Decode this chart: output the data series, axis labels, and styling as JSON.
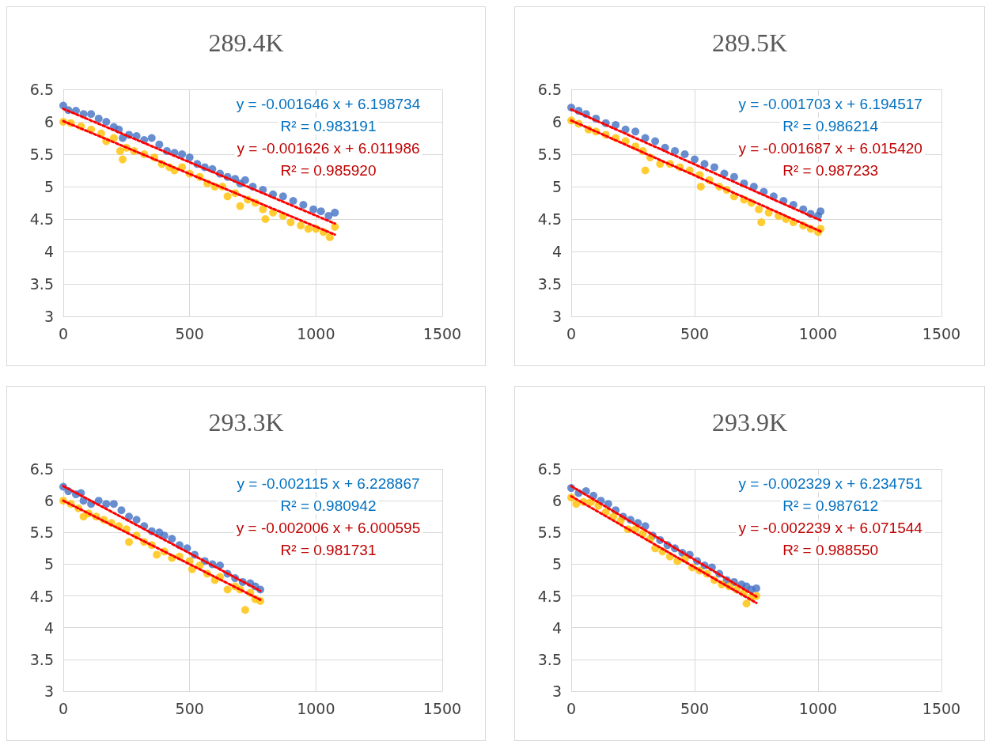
{
  "chart_data": [
    {
      "type": "scatter",
      "title": "289.4K",
      "xlim": [
        0,
        1500
      ],
      "xticks": [
        0,
        500,
        1000,
        1500
      ],
      "ylim": [
        3,
        6.5
      ],
      "yticks": [
        3,
        3.5,
        4,
        4.5,
        5,
        5.5,
        6,
        6.5
      ],
      "grid": true,
      "annotations": [
        "y = -0.001646 x + 6.198734",
        "R² = 0.983191",
        "y = -0.001626 x + 6.011986",
        "R² = 0.985920"
      ],
      "series": [
        {
          "color": "#4472c4",
          "marker": "circle",
          "x": [
            0,
            20,
            50,
            80,
            110,
            140,
            170,
            200,
            220,
            235,
            260,
            290,
            320,
            350,
            380,
            410,
            440,
            470,
            500,
            530,
            560,
            590,
            620,
            650,
            680,
            700,
            720,
            750,
            790,
            830,
            870,
            910,
            950,
            990,
            1020,
            1050,
            1075
          ],
          "values": [
            6.25,
            6.18,
            6.17,
            6.12,
            6.12,
            6.05,
            6.0,
            5.92,
            5.88,
            5.75,
            5.8,
            5.78,
            5.72,
            5.75,
            5.65,
            5.55,
            5.52,
            5.5,
            5.45,
            5.35,
            5.3,
            5.27,
            5.2,
            5.15,
            5.12,
            5.05,
            5.1,
            5.0,
            4.95,
            4.88,
            4.85,
            4.78,
            4.72,
            4.65,
            4.62,
            4.55,
            4.6
          ]
        },
        {
          "color": "#ffc000",
          "marker": "circle",
          "x": [
            0,
            30,
            70,
            110,
            150,
            170,
            200,
            225,
            235,
            250,
            280,
            320,
            360,
            390,
            420,
            440,
            470,
            500,
            540,
            570,
            600,
            630,
            650,
            680,
            700,
            730,
            760,
            790,
            800,
            830,
            870,
            900,
            940,
            970,
            1000,
            1030,
            1055,
            1075
          ],
          "values": [
            6.0,
            5.98,
            5.93,
            5.88,
            5.82,
            5.7,
            5.75,
            5.55,
            5.42,
            5.6,
            5.55,
            5.5,
            5.45,
            5.35,
            5.3,
            5.25,
            5.3,
            5.2,
            5.15,
            5.05,
            5.0,
            5.0,
            4.85,
            4.9,
            4.7,
            4.8,
            4.75,
            4.65,
            4.5,
            4.6,
            4.55,
            4.45,
            4.4,
            4.35,
            4.35,
            4.3,
            4.22,
            4.38
          ]
        },
        {
          "type": "line",
          "marker": "none",
          "line_style": "dotted",
          "color": "#ff0000",
          "x": [
            0,
            1075
          ],
          "values": [
            6.2,
            4.43
          ]
        },
        {
          "type": "line",
          "marker": "none",
          "line_style": "dotted",
          "color": "#ff0000",
          "x": [
            0,
            1075
          ],
          "values": [
            6.01,
            4.26
          ]
        }
      ]
    },
    {
      "type": "scatter",
      "title": "289.5K",
      "xlim": [
        0,
        1500
      ],
      "xticks": [
        0,
        500,
        1000,
        1500
      ],
      "ylim": [
        3,
        6.5
      ],
      "yticks": [
        3,
        3.5,
        4,
        4.5,
        5,
        5.5,
        6,
        6.5
      ],
      "grid": true,
      "annotations": [
        "y = -0.001703 x + 6.194517",
        "R² = 0.986214",
        "y = -0.001687 x + 6.015420",
        "R² = 0.987233"
      ],
      "series": [
        {
          "color": "#4472c4",
          "marker": "circle",
          "x": [
            0,
            30,
            60,
            100,
            140,
            180,
            220,
            260,
            300,
            340,
            380,
            420,
            460,
            500,
            540,
            580,
            620,
            660,
            700,
            740,
            780,
            820,
            860,
            900,
            940,
            970,
            1000,
            1010
          ],
          "values": [
            6.22,
            6.17,
            6.12,
            6.05,
            5.98,
            5.95,
            5.88,
            5.85,
            5.75,
            5.7,
            5.6,
            5.55,
            5.5,
            5.42,
            5.35,
            5.3,
            5.2,
            5.15,
            5.05,
            5.0,
            4.92,
            4.85,
            4.78,
            4.72,
            4.65,
            4.58,
            4.55,
            4.62
          ]
        },
        {
          "color": "#ffc000",
          "marker": "circle",
          "x": [
            0,
            30,
            70,
            100,
            140,
            180,
            220,
            260,
            290,
            300,
            320,
            360,
            400,
            440,
            480,
            520,
            525,
            560,
            600,
            630,
            660,
            700,
            730,
            760,
            770,
            800,
            840,
            870,
            900,
            940,
            970,
            1000,
            1010
          ],
          "values": [
            6.02,
            5.97,
            5.88,
            5.85,
            5.8,
            5.75,
            5.7,
            5.62,
            5.55,
            5.25,
            5.45,
            5.35,
            5.35,
            5.3,
            5.25,
            5.18,
            5.0,
            5.1,
            5.0,
            4.95,
            4.85,
            4.8,
            4.75,
            4.65,
            4.45,
            4.6,
            4.55,
            4.5,
            4.45,
            4.4,
            4.35,
            4.3,
            4.35
          ]
        },
        {
          "type": "line",
          "marker": "none",
          "line_style": "dotted",
          "color": "#ff0000",
          "x": [
            0,
            1010
          ],
          "values": [
            6.19,
            4.48
          ]
        },
        {
          "type": "line",
          "marker": "none",
          "line_style": "dotted",
          "color": "#ff0000",
          "x": [
            0,
            1010
          ],
          "values": [
            6.02,
            4.31
          ]
        }
      ]
    },
    {
      "type": "scatter",
      "title": "293.3K",
      "xlim": [
        0,
        1500
      ],
      "xticks": [
        0,
        500,
        1000,
        1500
      ],
      "ylim": [
        3,
        6.5
      ],
      "yticks": [
        3,
        3.5,
        4,
        4.5,
        5,
        5.5,
        6,
        6.5
      ],
      "grid": true,
      "annotations": [
        "y = -0.002115 x + 6.228867",
        "R² = 0.980942",
        "y = -0.002006 x + 6.000595",
        "R² = 0.981731"
      ],
      "series": [
        {
          "color": "#4472c4",
          "marker": "circle",
          "x": [
            0,
            20,
            50,
            70,
            80,
            110,
            140,
            170,
            200,
            230,
            260,
            290,
            320,
            350,
            380,
            400,
            430,
            460,
            490,
            520,
            560,
            590,
            620,
            650,
            680,
            710,
            740,
            760,
            780
          ],
          "values": [
            6.22,
            6.15,
            6.1,
            6.12,
            6.0,
            5.95,
            6.0,
            5.95,
            5.95,
            5.85,
            5.75,
            5.7,
            5.6,
            5.52,
            5.5,
            5.45,
            5.4,
            5.3,
            5.25,
            5.15,
            5.05,
            5.0,
            4.98,
            4.85,
            4.78,
            4.72,
            4.7,
            4.65,
            4.6
          ]
        },
        {
          "color": "#ffc000",
          "marker": "circle",
          "x": [
            0,
            30,
            60,
            80,
            100,
            130,
            160,
            190,
            220,
            250,
            260,
            290,
            320,
            350,
            370,
            400,
            430,
            460,
            500,
            510,
            540,
            570,
            600,
            620,
            650,
            680,
            700,
            720,
            740,
            760,
            780
          ],
          "values": [
            6.0,
            5.95,
            5.88,
            5.75,
            5.8,
            5.75,
            5.7,
            5.65,
            5.6,
            5.55,
            5.35,
            5.45,
            5.35,
            5.3,
            5.15,
            5.2,
            5.1,
            5.12,
            5.05,
            4.92,
            4.98,
            4.85,
            4.75,
            4.8,
            4.6,
            4.65,
            4.6,
            4.28,
            4.55,
            4.45,
            4.42
          ]
        },
        {
          "type": "line",
          "marker": "none",
          "line_style": "dotted",
          "color": "#ff0000",
          "x": [
            0,
            780
          ],
          "values": [
            6.23,
            4.58
          ]
        },
        {
          "type": "line",
          "marker": "none",
          "line_style": "dotted",
          "color": "#ff0000",
          "x": [
            0,
            780
          ],
          "values": [
            6.0,
            4.44
          ]
        }
      ]
    },
    {
      "type": "scatter",
      "title": "293.9K",
      "xlim": [
        0,
        1500
      ],
      "xticks": [
        0,
        500,
        1000,
        1500
      ],
      "ylim": [
        3,
        6.5
      ],
      "yticks": [
        3,
        3.5,
        4,
        4.5,
        5,
        5.5,
        6,
        6.5
      ],
      "grid": true,
      "annotations": [
        "y = -0.002329 x + 6.234751",
        "R² = 0.987612",
        "y = -0.002239 x + 6.071544",
        "R² = 0.988550"
      ],
      "series": [
        {
          "color": "#4472c4",
          "marker": "circle",
          "x": [
            0,
            30,
            60,
            90,
            120,
            150,
            180,
            210,
            240,
            270,
            300,
            330,
            360,
            390,
            420,
            450,
            480,
            510,
            540,
            570,
            600,
            630,
            660,
            690,
            710,
            730,
            750
          ],
          "values": [
            6.2,
            6.12,
            6.15,
            6.08,
            6.0,
            5.95,
            5.85,
            5.75,
            5.7,
            5.65,
            5.6,
            5.45,
            5.38,
            5.3,
            5.25,
            5.18,
            5.15,
            5.05,
            4.98,
            4.95,
            4.85,
            4.75,
            4.72,
            4.68,
            4.65,
            4.6,
            4.62
          ]
        },
        {
          "color": "#ffc000",
          "marker": "circle",
          "x": [
            0,
            20,
            50,
            80,
            110,
            140,
            170,
            200,
            230,
            260,
            290,
            320,
            340,
            370,
            400,
            430,
            460,
            490,
            520,
            550,
            580,
            610,
            640,
            670,
            700,
            710,
            730,
            750
          ],
          "values": [
            6.05,
            5.95,
            5.98,
            5.98,
            5.92,
            5.82,
            5.75,
            5.68,
            5.55,
            5.55,
            5.48,
            5.4,
            5.25,
            5.2,
            5.12,
            5.05,
            5.08,
            4.95,
            4.9,
            4.85,
            4.75,
            4.68,
            4.65,
            4.6,
            4.55,
            4.38,
            4.48,
            4.5
          ]
        },
        {
          "type": "line",
          "marker": "none",
          "line_style": "dotted",
          "color": "#ff0000",
          "x": [
            0,
            750
          ],
          "values": [
            6.23,
            4.49
          ]
        },
        {
          "type": "line",
          "marker": "none",
          "line_style": "dotted",
          "color": "#ff0000",
          "x": [
            0,
            750
          ],
          "values": [
            6.07,
            4.39
          ]
        }
      ]
    }
  ]
}
